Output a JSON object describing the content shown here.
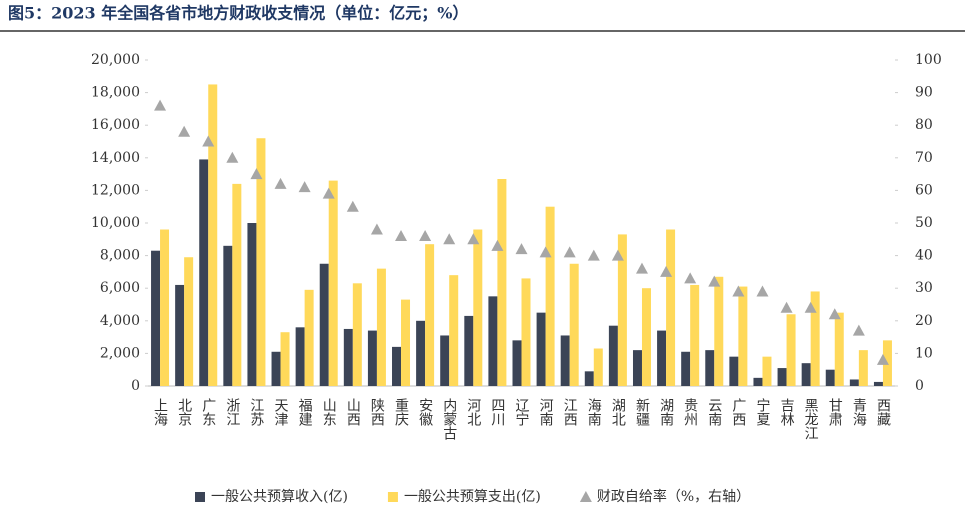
{
  "chart_data": {
    "type": "bar-line",
    "title": "图5：2023 年全国各省市地方财政收支情况（单位：亿元；%）",
    "categories": [
      "上海",
      "北京",
      "广东",
      "浙江",
      "江苏",
      "天津",
      "福建",
      "山东",
      "山西",
      "陕西",
      "重庆",
      "安徽",
      "内蒙古",
      "河北",
      "四川",
      "辽宁",
      "河南",
      "江西",
      "海南",
      "湖北",
      "新疆",
      "湖南",
      "贵州",
      "云南",
      "广西",
      "宁夏",
      "吉林",
      "黑龙江",
      "甘肃",
      "青海",
      "西藏"
    ],
    "series": [
      {
        "name": "一般公共预算收入(亿)",
        "color": "#3b4456",
        "type": "bar",
        "values": [
          8300,
          6200,
          13900,
          8600,
          10000,
          2100,
          3600,
          7500,
          3500,
          3400,
          2400,
          4000,
          3100,
          4300,
          5500,
          2800,
          4500,
          3100,
          900,
          3700,
          2200,
          3400,
          2100,
          2200,
          1800,
          500,
          1100,
          1400,
          1000,
          400,
          250
        ]
      },
      {
        "name": "一般公共预算支出(亿)",
        "color": "#ffd95a",
        "type": "bar",
        "values": [
          9600,
          7900,
          18500,
          12400,
          15200,
          3300,
          5900,
          12600,
          6300,
          7200,
          5300,
          8700,
          6800,
          9600,
          12700,
          6600,
          11000,
          7500,
          2300,
          9300,
          6000,
          9600,
          6200,
          6700,
          6100,
          1800,
          4400,
          5800,
          4500,
          2200,
          2800
        ]
      },
      {
        "name": "财政自给率（%，右轴）",
        "color": "#a6a6a6",
        "type": "scatter",
        "axis": "y2",
        "values": [
          86,
          78,
          75,
          70,
          65,
          62,
          61,
          59,
          55,
          48,
          46,
          46,
          45,
          45,
          43,
          42,
          41,
          41,
          40,
          40,
          36,
          35,
          33,
          32,
          29,
          29,
          24,
          24,
          22,
          17,
          8
        ]
      }
    ],
    "ylim": [
      0,
      20000
    ],
    "yticks": [
      0,
      {
        "value": 2000,
        "label": "2,000"
      },
      {
        "value": 4000,
        "label": "4,000"
      },
      {
        "value": 6000,
        "label": "6,000"
      },
      {
        "value": 8000,
        "label": "8,000"
      },
      {
        "value": 10000,
        "label": "10,000"
      },
      {
        "value": 12000,
        "label": "12,000"
      },
      {
        "value": 14000,
        "label": "14,000"
      },
      {
        "value": 16000,
        "label": "16,000"
      },
      {
        "value": 18000,
        "label": "18,000"
      },
      {
        "value": 20000,
        "label": "20,000"
      }
    ],
    "y2lim": [
      0,
      100
    ],
    "y2ticks": [
      0,
      10,
      20,
      30,
      40,
      50,
      60,
      70,
      80,
      90,
      100
    ],
    "grid": false
  }
}
